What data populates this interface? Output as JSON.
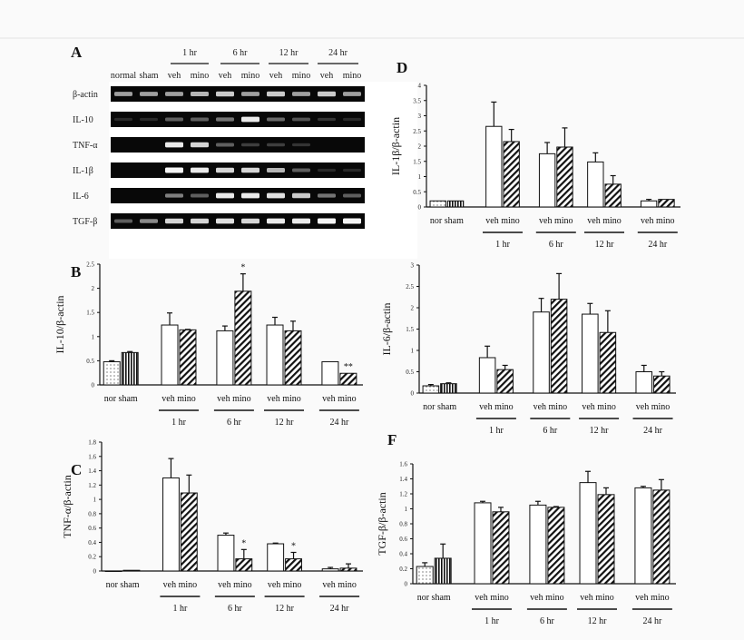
{
  "figure": {
    "accent_colors": {
      "axis": "#111111",
      "gel_background": "#080808",
      "band": "#f2f2f2",
      "page": "#fafafa"
    }
  },
  "gel": {
    "panel_label": "A",
    "time_labels": [
      "1 hr",
      "6 hr",
      "12 hr",
      "24 hr"
    ],
    "lane_labels": [
      "normal",
      "sham",
      "veh",
      "mino",
      "veh",
      "mino",
      "veh",
      "mino",
      "veh",
      "mino"
    ],
    "rows": [
      {
        "label": "β-actin",
        "band_intensity": [
          0.6,
          0.6,
          0.6,
          0.7,
          0.8,
          0.6,
          0.8,
          0.6,
          0.8,
          0.6
        ]
      },
      {
        "label": "IL-10",
        "band_intensity": [
          0.05,
          0.05,
          0.3,
          0.3,
          0.4,
          0.95,
          0.35,
          0.25,
          0.1,
          0.05
        ]
      },
      {
        "label": "TNF-α",
        "band_intensity": [
          0,
          0,
          0.95,
          0.85,
          0.3,
          0.15,
          0.15,
          0.1,
          0,
          0
        ]
      },
      {
        "label": "IL-1β",
        "band_intensity": [
          0,
          0,
          1,
          0.95,
          0.85,
          0.85,
          0.7,
          0.3,
          0.05,
          0.05
        ]
      },
      {
        "label": "IL-6",
        "band_intensity": [
          0,
          0,
          0.45,
          0.3,
          0.95,
          0.95,
          0.9,
          0.8,
          0.4,
          0.3
        ]
      },
      {
        "label": "TGF-β",
        "band_intensity": [
          0.3,
          0.5,
          0.85,
          0.85,
          0.9,
          0.85,
          0.95,
          0.95,
          1,
          1
        ]
      }
    ]
  },
  "chart_data": [
    {
      "panel_label": "B",
      "type": "bar",
      "ylabel": "IL-10/β-actin",
      "ylim": [
        0,
        2.5
      ],
      "yticks": [
        "0",
        "0.5",
        "1",
        "1.5",
        "2",
        "2.5"
      ],
      "ytick_values": [
        0,
        0.5,
        1,
        1.5,
        2,
        2.5
      ],
      "pair_labels": [
        "nor sham",
        "veh mino",
        "veh mino",
        "veh mino",
        "veh mino"
      ],
      "time_labels": [
        "1 hr",
        "6 hr",
        "12 hr",
        "24 hr"
      ],
      "categories": [
        "nor",
        "sham",
        "1 hr veh",
        "1 hr mino",
        "6 hr veh",
        "6 hr mino",
        "12 hr veh",
        "12 hr mino",
        "24 hr veh",
        "24 hr mino"
      ],
      "values": [
        0.48,
        0.67,
        1.24,
        1.14,
        1.12,
        1.94,
        1.24,
        1.12,
        0.48,
        0.24
      ],
      "error_top": [
        0.5,
        0.69,
        1.49,
        1.15,
        1.22,
        2.3,
        1.4,
        1.32,
        0.48,
        0.24
      ],
      "annotations": [
        "",
        "",
        "",
        "",
        "",
        "*",
        "",
        "",
        "",
        "**"
      ]
    },
    {
      "panel_label": "C",
      "type": "bar",
      "ylabel": "TNF-α/β-actin",
      "ylim": [
        0,
        1.8
      ],
      "yticks": [
        "0",
        "0.2",
        "0.4",
        "0.6",
        "0.8",
        "1",
        "1.2",
        "1.4",
        "1.6",
        "1.8"
      ],
      "ytick_values": [
        0,
        0.2,
        0.4,
        0.6,
        0.8,
        1,
        1.2,
        1.4,
        1.6,
        1.8
      ],
      "pair_labels": [
        "nor sham",
        "veh mino",
        "veh mino",
        "veh mino",
        "veh mino"
      ],
      "time_labels": [
        "1 hr",
        "6 hr",
        "12 hr",
        "24 hr"
      ],
      "categories": [
        "nor",
        "sham",
        "1 hr veh",
        "1 hr mino",
        "6 hr veh",
        "6 hr mino",
        "12 hr veh",
        "12 hr mino",
        "24 hr veh",
        "24 hr mino"
      ],
      "values": [
        0,
        0.01,
        1.3,
        1.09,
        0.5,
        0.17,
        0.38,
        0.17,
        0.03,
        0.04
      ],
      "error_top": [
        0,
        0.01,
        1.57,
        1.34,
        0.53,
        0.3,
        0.39,
        0.26,
        0.05,
        0.1
      ],
      "annotations": [
        "",
        "",
        "",
        "",
        "",
        "*",
        "",
        "*",
        "",
        ""
      ]
    },
    {
      "panel_label": "D",
      "type": "bar",
      "ylabel": "IL-1β/β-actin",
      "ylim": [
        0,
        4
      ],
      "yticks": [
        "0",
        "0.5",
        "1",
        "1.5",
        "2",
        "2.5",
        "3",
        "3.5",
        "4"
      ],
      "ytick_values": [
        0,
        0.5,
        1,
        1.5,
        2,
        2.5,
        3,
        3.5,
        4
      ],
      "pair_labels": [
        "nor sham",
        "veh mino",
        "veh mino",
        "veh mino",
        "veh mino"
      ],
      "time_labels": [
        "1 hr",
        "6 hr",
        "12 hr",
        "24 hr"
      ],
      "categories": [
        "nor",
        "sham",
        "1 hr veh",
        "1 hr mino",
        "6 hr veh",
        "6 hr mino",
        "12 hr veh",
        "12 hr mino",
        "24 hr veh",
        "24 hr mino"
      ],
      "values": [
        0.2,
        0.2,
        2.65,
        2.15,
        1.75,
        1.97,
        1.48,
        0.75,
        0.2,
        0.25
      ],
      "error_top": [
        0.2,
        0.2,
        3.45,
        2.55,
        2.12,
        2.6,
        1.78,
        1.03,
        0.25,
        0.25
      ],
      "annotations": [
        "",
        "",
        "",
        "",
        "",
        "",
        "",
        "",
        "",
        ""
      ]
    },
    {
      "panel_label": "",
      "type": "bar",
      "ylabel": "IL-6/β-actin",
      "ylim": [
        0,
        3
      ],
      "yticks": [
        "0",
        "0.5",
        "1",
        "1.5",
        "2",
        "2.5",
        "3"
      ],
      "ytick_values": [
        0,
        0.5,
        1,
        1.5,
        2,
        2.5,
        3
      ],
      "pair_labels": [
        "nor sham",
        "veh mino",
        "veh mino",
        "veh mino",
        "veh mino"
      ],
      "time_labels": [
        "1 hr",
        "6 hr",
        "12 hr",
        "24 hr"
      ],
      "categories": [
        "nor",
        "sham",
        "1 hr veh",
        "1 hr mino",
        "6 hr veh",
        "6 hr mino",
        "12 hr veh",
        "12 hr mino",
        "24 hr veh",
        "24 hr mino"
      ],
      "values": [
        0.17,
        0.22,
        0.83,
        0.55,
        1.9,
        2.2,
        1.85,
        1.42,
        0.5,
        0.4
      ],
      "error_top": [
        0.2,
        0.24,
        1.1,
        0.65,
        2.22,
        2.8,
        2.1,
        1.93,
        0.65,
        0.5
      ],
      "annotations": [
        "",
        "",
        "",
        "",
        "",
        "",
        "",
        "",
        "",
        ""
      ]
    },
    {
      "panel_label": "F",
      "type": "bar",
      "ylabel": "TGF-β/β-actin",
      "ylim": [
        0,
        1.6
      ],
      "yticks": [
        "0",
        "0.2",
        "0.4",
        "0.6",
        "0.8",
        "1",
        "1.2",
        "1.4",
        "1.6"
      ],
      "ytick_values": [
        0,
        0.2,
        0.4,
        0.6,
        0.8,
        1,
        1.2,
        1.4,
        1.6
      ],
      "pair_labels": [
        "nor sham",
        "veh mino",
        "veh mino",
        "veh mino",
        "veh mino"
      ],
      "time_labels": [
        "1 hr",
        "6 hr",
        "12 hr",
        "24 hr"
      ],
      "categories": [
        "nor",
        "sham",
        "1 hr veh",
        "1 hr mino",
        "6 hr veh",
        "6 hr mino",
        "12 hr veh",
        "12 hr mino",
        "24 hr veh",
        "24 hr mino"
      ],
      "values": [
        0.23,
        0.34,
        1.08,
        0.96,
        1.05,
        1.02,
        1.35,
        1.19,
        1.28,
        1.25
      ],
      "error_top": [
        0.28,
        0.53,
        1.1,
        1.02,
        1.1,
        1.03,
        1.5,
        1.28,
        1.3,
        1.39
      ],
      "annotations": [
        "",
        "",
        "",
        "",
        "",
        "",
        "",
        "",
        "",
        ""
      ]
    }
  ]
}
